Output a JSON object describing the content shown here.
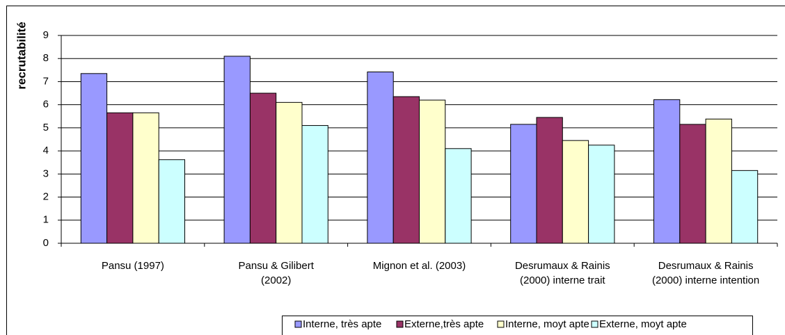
{
  "chart_data": {
    "type": "bar",
    "y_label": "recrutabilité",
    "categories": [
      [
        "Pansu (1997)"
      ],
      [
        "Pansu & Gilibert",
        "(2002)"
      ],
      [
        "Mignon et al. (2003)"
      ],
      [
        "Desrumaux & Rainis",
        "(2000) interne trait"
      ],
      [
        "Desrumaux & Rainis",
        "(2000) interne intention"
      ]
    ],
    "series": [
      {
        "name": "Interne, très apte",
        "color": "#9999ff",
        "values": [
          7.35,
          8.1,
          7.42,
          5.15,
          6.22
        ]
      },
      {
        "name": "Externe,très apte",
        "color": "#993366",
        "values": [
          5.65,
          6.5,
          6.35,
          5.45,
          5.15
        ]
      },
      {
        "name": "Interne, moyt apte",
        "color": "#ffffcc",
        "values": [
          5.65,
          6.1,
          6.2,
          4.45,
          5.38
        ]
      },
      {
        "name": "Externe, moyt apte",
        "color": "#ccffff",
        "values": [
          3.62,
          5.1,
          4.1,
          4.25,
          3.15
        ]
      }
    ],
    "ylim": [
      0,
      9
    ],
    "yticks": [
      0,
      1,
      2,
      3,
      4,
      5,
      6,
      7,
      8,
      9
    ],
    "grid": true,
    "legend": "bottom"
  }
}
